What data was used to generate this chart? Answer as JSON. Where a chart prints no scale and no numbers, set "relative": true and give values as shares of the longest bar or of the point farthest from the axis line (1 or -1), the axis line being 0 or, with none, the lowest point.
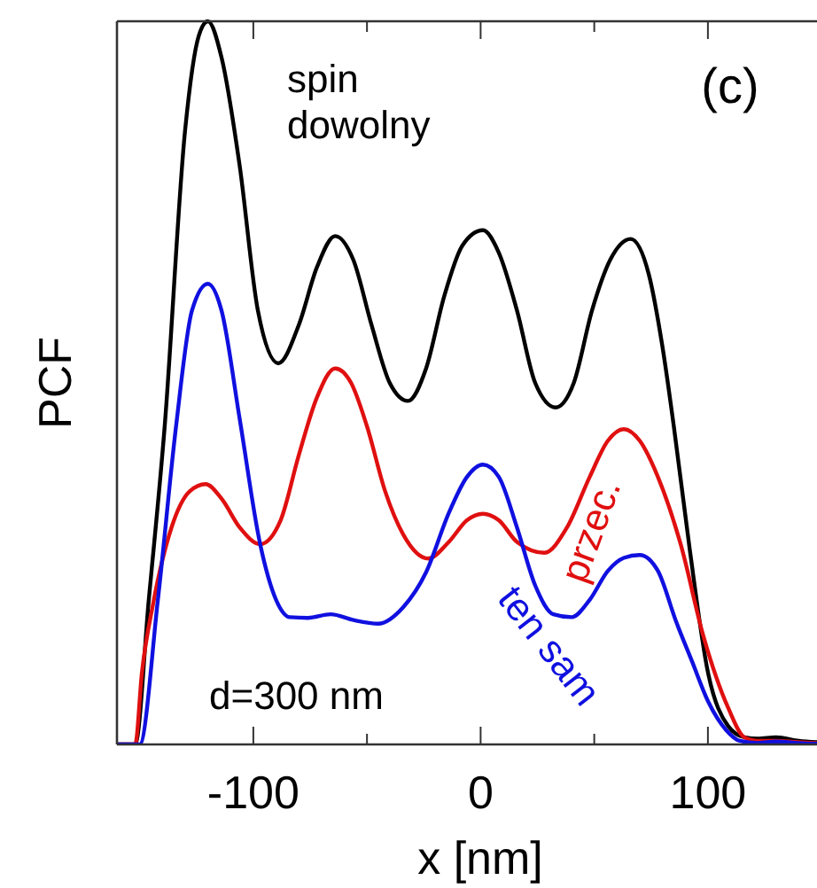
{
  "chart_data": {
    "type": "line",
    "xlabel": "x [nm]",
    "ylabel": "PCF",
    "relative": true,
    "xlim": [
      -160,
      148
    ],
    "xticks": [
      -100,
      {
        "value": -50,
        "label": null
      },
      0,
      {
        "value": 50,
        "label": null
      },
      100
    ],
    "grid": false,
    "annotations": [
      "d=300 nm",
      "(c)"
    ],
    "series": [
      {
        "name": "spin dowolny",
        "color": "#000000",
        "x": [
          -160,
          -152,
          -146,
          -139,
          -130,
          -124,
          -120,
          -114,
          -106,
          -98,
          -89,
          -80,
          -72,
          -64,
          -56,
          -48,
          -40,
          -32,
          -24,
          -16,
          -8,
          1,
          8,
          16,
          24,
          33,
          41,
          49,
          57,
          66,
          74,
          80,
          85,
          92,
          100,
          109,
          116,
          122,
          130,
          140,
          148
        ],
        "values": [
          0,
          0,
          0.2,
          0.44,
          0.85,
          0.98,
          1.0,
          0.95,
          0.8,
          0.6,
          0.527,
          0.58,
          0.66,
          0.703,
          0.67,
          0.58,
          0.5,
          0.475,
          0.52,
          0.62,
          0.69,
          0.711,
          0.68,
          0.6,
          0.5,
          0.466,
          0.5,
          0.6,
          0.67,
          0.699,
          0.65,
          0.55,
          0.44,
          0.27,
          0.1,
          0.025,
          0.01,
          0.008,
          0.01,
          0.005,
          0.003
        ]
      },
      {
        "name": "przec.",
        "color": "#e01010",
        "x": [
          -160,
          -152,
          -149,
          -144,
          -136,
          -128,
          -121,
          -114,
          -106,
          -97,
          -88,
          -80,
          -72,
          -64,
          -57,
          -50,
          -42,
          -34,
          -23,
          -14,
          -6,
          1,
          8,
          16,
          28,
          38,
          48,
          56,
          63,
          70,
          78,
          88,
          98,
          109,
          116,
          122,
          130,
          140,
          148
        ],
        "values": [
          0,
          0,
          0.1,
          0.196,
          0.3,
          0.35,
          0.36,
          0.34,
          0.3,
          0.277,
          0.31,
          0.4,
          0.48,
          0.52,
          0.5,
          0.44,
          0.35,
          0.29,
          0.257,
          0.28,
          0.31,
          0.319,
          0.31,
          0.28,
          0.265,
          0.3,
          0.37,
          0.42,
          0.436,
          0.42,
          0.37,
          0.277,
          0.15,
          0.05,
          0.01,
          0.005,
          0.005,
          0.003,
          0.002
        ]
      },
      {
        "name": "ten sam",
        "color": "#1010e0",
        "x": [
          -160,
          -150,
          -142,
          -134,
          -127,
          -120,
          -114,
          -106,
          -97,
          -90,
          -84,
          -76,
          -66,
          -56,
          -45,
          -34,
          -24,
          -14,
          -6,
          1,
          8,
          16,
          24,
          32,
          40,
          48,
          56,
          63,
          70,
          78,
          86,
          93,
          100,
          108,
          114,
          122,
          130,
          140,
          148
        ],
        "values": [
          0,
          0,
          0.2,
          0.44,
          0.6,
          0.637,
          0.6,
          0.45,
          0.277,
          0.2,
          0.176,
          0.175,
          0.18,
          0.172,
          0.167,
          0.19,
          0.238,
          0.32,
          0.37,
          0.387,
          0.37,
          0.3,
          0.22,
          0.18,
          0.176,
          0.2,
          0.24,
          0.258,
          0.262,
          0.24,
          0.17,
          0.115,
          0.06,
          0.02,
          0.005,
          0.002,
          0.004,
          0.002,
          0.001
        ]
      }
    ]
  }
}
